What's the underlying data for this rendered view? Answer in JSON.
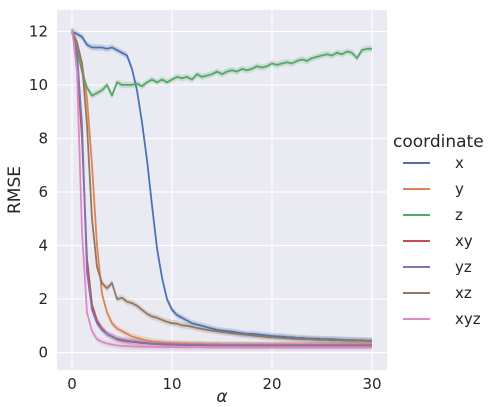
{
  "chart_data": {
    "type": "line",
    "xlabel": "α",
    "ylabel": "RMSE",
    "xlim": [
      -1.5,
      31.5
    ],
    "ylim": [
      -0.65,
      12.8
    ],
    "xticks": [
      "0",
      "10",
      "20",
      "30"
    ],
    "yticks": [
      "0",
      "2",
      "4",
      "6",
      "8",
      "10",
      "12"
    ],
    "grid": true,
    "legend_title": "coordinate",
    "legend_position": "outside-right",
    "x": [
      0,
      0.5,
      1,
      1.5,
      2,
      2.5,
      3,
      3.5,
      4,
      4.5,
      5,
      5.5,
      6,
      6.5,
      7,
      7.5,
      8,
      8.5,
      9,
      9.5,
      10,
      10.5,
      11,
      11.5,
      12,
      12.5,
      13,
      13.5,
      14,
      14.5,
      15,
      15.5,
      16,
      16.5,
      17,
      17.5,
      18,
      18.5,
      19,
      19.5,
      20,
      20.5,
      21,
      21.5,
      22,
      22.5,
      23,
      23.5,
      24,
      24.5,
      25,
      25.5,
      26,
      26.5,
      27,
      27.5,
      28,
      28.5,
      29,
      29.5,
      30
    ],
    "series": [
      {
        "name": "x",
        "color": "#4c72b0",
        "values": [
          12.0,
          11.9,
          11.8,
          11.5,
          11.4,
          11.4,
          11.4,
          11.35,
          11.4,
          11.3,
          11.2,
          11.1,
          10.6,
          9.8,
          8.6,
          7.2,
          5.5,
          3.9,
          2.8,
          2.0,
          1.6,
          1.4,
          1.3,
          1.2,
          1.1,
          1.05,
          1.0,
          0.95,
          0.9,
          0.85,
          0.82,
          0.8,
          0.78,
          0.75,
          0.72,
          0.7,
          0.7,
          0.68,
          0.66,
          0.64,
          0.62,
          0.6,
          0.6,
          0.58,
          0.57,
          0.55,
          0.55,
          0.53,
          0.52,
          0.52,
          0.5,
          0.5,
          0.5,
          0.49,
          0.48,
          0.47,
          0.47,
          0.46,
          0.46,
          0.45,
          0.45
        ]
      },
      {
        "name": "y",
        "color": "#dd8452",
        "values": [
          12.0,
          11.5,
          10.8,
          9.5,
          7.0,
          4.0,
          2.2,
          1.5,
          1.1,
          0.9,
          0.8,
          0.7,
          0.6,
          0.55,
          0.5,
          0.45,
          0.42,
          0.4,
          0.38,
          0.36,
          0.35,
          0.34,
          0.33,
          0.33,
          0.32,
          0.32,
          0.32,
          0.31,
          0.31,
          0.31,
          0.3,
          0.3,
          0.3,
          0.3,
          0.3,
          0.3,
          0.3,
          0.3,
          0.3,
          0.3,
          0.3,
          0.3,
          0.3,
          0.3,
          0.3,
          0.3,
          0.3,
          0.3,
          0.3,
          0.3,
          0.3,
          0.3,
          0.3,
          0.3,
          0.3,
          0.3,
          0.3,
          0.3,
          0.3,
          0.3,
          0.3
        ]
      },
      {
        "name": "z",
        "color": "#55a868",
        "values": [
          12.0,
          11.3,
          10.5,
          9.9,
          9.6,
          9.7,
          9.8,
          10.0,
          9.6,
          10.1,
          10.0,
          10.0,
          10.0,
          10.05,
          9.95,
          10.1,
          10.2,
          10.1,
          10.2,
          10.1,
          10.2,
          10.3,
          10.25,
          10.3,
          10.2,
          10.4,
          10.3,
          10.35,
          10.4,
          10.5,
          10.4,
          10.5,
          10.55,
          10.5,
          10.6,
          10.55,
          10.6,
          10.7,
          10.65,
          10.7,
          10.8,
          10.75,
          10.8,
          10.85,
          10.8,
          10.9,
          10.95,
          10.9,
          11.0,
          11.05,
          11.1,
          11.15,
          11.1,
          11.2,
          11.15,
          11.25,
          11.2,
          11.0,
          11.3,
          11.35,
          11.35
        ]
      },
      {
        "name": "xy",
        "color": "#c44e52",
        "values": [
          12.0,
          11.0,
          8.0,
          3.5,
          1.8,
          1.2,
          0.9,
          0.7,
          0.6,
          0.5,
          0.45,
          0.42,
          0.4,
          0.38,
          0.36,
          0.35,
          0.33,
          0.32,
          0.31,
          0.3,
          0.3,
          0.29,
          0.29,
          0.28,
          0.28,
          0.28,
          0.28,
          0.27,
          0.27,
          0.27,
          0.27,
          0.27,
          0.27,
          0.27,
          0.26,
          0.26,
          0.26,
          0.26,
          0.26,
          0.26,
          0.26,
          0.26,
          0.26,
          0.26,
          0.26,
          0.26,
          0.26,
          0.26,
          0.26,
          0.26,
          0.26,
          0.26,
          0.26,
          0.26,
          0.26,
          0.26,
          0.26,
          0.26,
          0.26,
          0.26,
          0.26
        ]
      },
      {
        "name": "yz",
        "color": "#8172b3",
        "values": [
          12.0,
          11.2,
          8.5,
          3.0,
          1.6,
          1.1,
          0.85,
          0.7,
          0.6,
          0.52,
          0.48,
          0.45,
          0.42,
          0.4,
          0.38,
          0.36,
          0.34,
          0.33,
          0.32,
          0.31,
          0.3,
          0.3,
          0.29,
          0.29,
          0.28,
          0.28,
          0.28,
          0.28,
          0.27,
          0.27,
          0.27,
          0.27,
          0.27,
          0.27,
          0.27,
          0.27,
          0.27,
          0.27,
          0.27,
          0.27,
          0.27,
          0.27,
          0.27,
          0.27,
          0.27,
          0.27,
          0.27,
          0.27,
          0.27,
          0.27,
          0.27,
          0.27,
          0.27,
          0.27,
          0.27,
          0.27,
          0.27,
          0.27,
          0.27,
          0.27,
          0.27
        ]
      },
      {
        "name": "xz",
        "color": "#937860",
        "values": [
          12.0,
          11.6,
          10.8,
          8.5,
          5.0,
          3.2,
          2.6,
          2.4,
          2.6,
          2.0,
          2.05,
          1.9,
          1.85,
          1.75,
          1.6,
          1.45,
          1.35,
          1.3,
          1.22,
          1.15,
          1.1,
          1.08,
          1.02,
          1.0,
          0.96,
          0.92,
          0.88,
          0.85,
          0.82,
          0.8,
          0.77,
          0.75,
          0.72,
          0.7,
          0.68,
          0.66,
          0.64,
          0.62,
          0.6,
          0.58,
          0.57,
          0.56,
          0.54,
          0.53,
          0.52,
          0.51,
          0.5,
          0.5,
          0.49,
          0.48,
          0.47,
          0.47,
          0.46,
          0.46,
          0.45,
          0.45,
          0.44,
          0.44,
          0.44,
          0.43,
          0.43
        ]
      },
      {
        "name": "xyz",
        "color": "#da8bc3",
        "values": [
          12.1,
          10.5,
          4.5,
          1.5,
          0.8,
          0.5,
          0.4,
          0.34,
          0.3,
          0.27,
          0.25,
          0.24,
          0.23,
          0.22,
          0.22,
          0.21,
          0.21,
          0.21,
          0.2,
          0.2,
          0.2,
          0.2,
          0.2,
          0.2,
          0.2,
          0.2,
          0.2,
          0.2,
          0.2,
          0.2,
          0.2,
          0.2,
          0.2,
          0.2,
          0.2,
          0.2,
          0.2,
          0.2,
          0.2,
          0.2,
          0.2,
          0.2,
          0.2,
          0.2,
          0.2,
          0.2,
          0.2,
          0.2,
          0.2,
          0.2,
          0.2,
          0.2,
          0.2,
          0.2,
          0.2,
          0.2,
          0.2,
          0.2,
          0.2,
          0.2,
          0.2
        ]
      }
    ]
  }
}
